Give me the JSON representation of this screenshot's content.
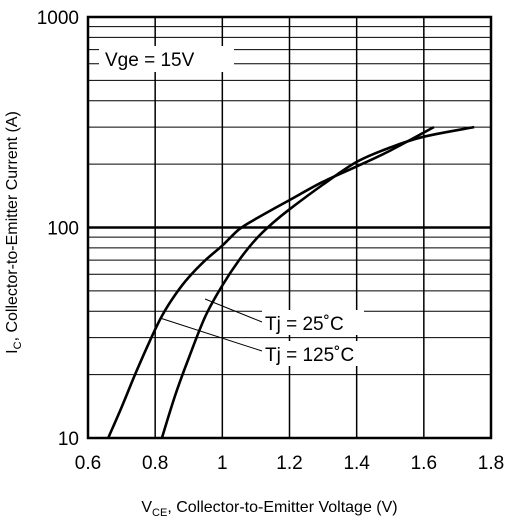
{
  "chart_data": {
    "type": "line",
    "xlabel": {
      "main": "V",
      "sub": "CE",
      "rest": ", Collector-to-Emitter Voltage (V)"
    },
    "ylabel": {
      "main": "I",
      "sub": "C",
      "rest": ", Collector-to-Emitter Current (A)"
    },
    "xlim": [
      0.6,
      1.8
    ],
    "ylim": [
      10,
      1000
    ],
    "yscale": "log",
    "grid": true,
    "x_ticks": [
      0.6,
      0.8,
      1.0,
      1.2,
      1.4,
      1.6,
      1.8
    ],
    "x_tick_labels": [
      "0.6",
      "0.8",
      "1",
      "1.2",
      "1.4",
      "1.6",
      "1.8"
    ],
    "y_ticks": [
      10,
      100,
      1000
    ],
    "y_tick_labels": [
      "10",
      "100",
      "1000"
    ],
    "annotation_condition": "Vge = 15V",
    "series": [
      {
        "name": "Tj = 25˚C",
        "points": [
          [
            0.66,
            10
          ],
          [
            0.7,
            14
          ],
          [
            0.74,
            20
          ],
          [
            0.78,
            28
          ],
          [
            0.82,
            38
          ],
          [
            0.86,
            48
          ],
          [
            0.9,
            58
          ],
          [
            0.95,
            70
          ],
          [
            1.0,
            82
          ],
          [
            1.05,
            98
          ],
          [
            1.1,
            110
          ],
          [
            1.2,
            135
          ],
          [
            1.3,
            165
          ],
          [
            1.4,
            195
          ],
          [
            1.5,
            232
          ],
          [
            1.63,
            300
          ]
        ]
      },
      {
        "name": "Tj = 125˚C",
        "points": [
          [
            0.82,
            10
          ],
          [
            0.86,
            16
          ],
          [
            0.9,
            24
          ],
          [
            0.95,
            38
          ],
          [
            1.0,
            53
          ],
          [
            1.05,
            70
          ],
          [
            1.1,
            88
          ],
          [
            1.15,
            105
          ],
          [
            1.2,
            122
          ],
          [
            1.3,
            160
          ],
          [
            1.4,
            205
          ],
          [
            1.5,
            240
          ],
          [
            1.6,
            270
          ],
          [
            1.75,
            300
          ]
        ]
      }
    ]
  }
}
